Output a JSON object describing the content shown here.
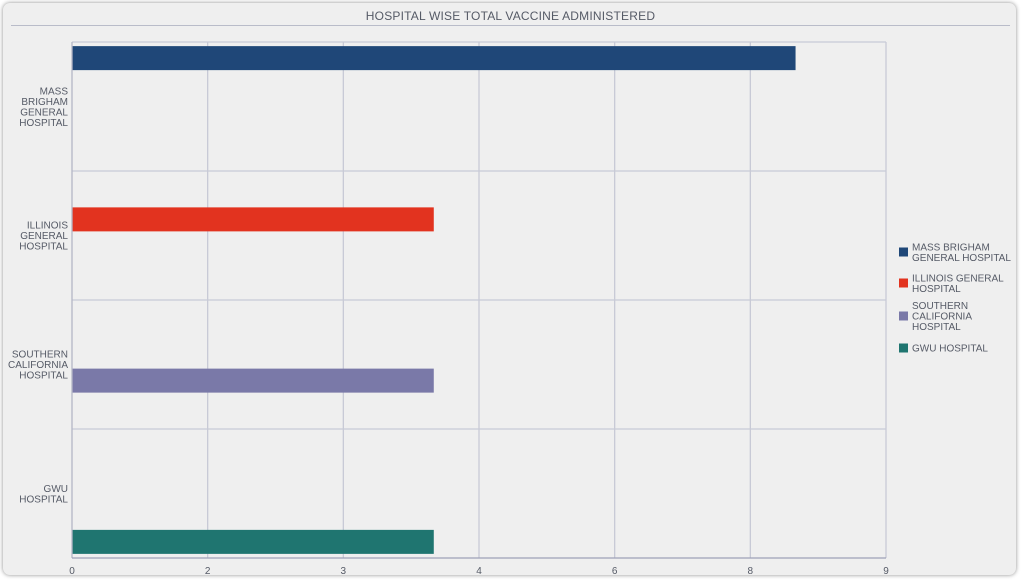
{
  "chart_data": {
    "type": "bar",
    "orientation": "horizontal",
    "title": "HOSPITAL WISE TOTAL VACCINE ADMINISTERED",
    "xlabel": "",
    "ylabel": "",
    "xlim": [
      0,
      9
    ],
    "x_ticks": [
      {
        "value": 0,
        "label": "0"
      },
      {
        "value": 1.5,
        "label": "2"
      },
      {
        "value": 3,
        "label": "3"
      },
      {
        "value": 4.5,
        "label": "4"
      },
      {
        "value": 6,
        "label": "6"
      },
      {
        "value": 7.5,
        "label": "8"
      },
      {
        "value": 9,
        "label": "9"
      }
    ],
    "grid": true,
    "legend_position": "right",
    "categories": [
      {
        "lines": [
          "MASS",
          "BRIGHAM",
          "GENERAL",
          "HOSPITAL"
        ]
      },
      {
        "lines": [
          "ILLINOIS",
          "GENERAL",
          "HOSPITAL"
        ]
      },
      {
        "lines": [
          "SOUTHERN",
          "CALIFORNIA",
          "HOSPITAL"
        ]
      },
      {
        "lines": [
          "GWU",
          "HOSPITAL"
        ]
      }
    ],
    "series": [
      {
        "name_lines": [
          "MASS BRIGHAM",
          "GENERAL HOSPITAL"
        ],
        "color": "#1f4778",
        "category_index": 0,
        "value": 8,
        "slot": 0
      },
      {
        "name_lines": [
          "ILLINOIS GENERAL",
          "HOSPITAL"
        ],
        "color": "#e2331f",
        "category_index": 1,
        "value": 4,
        "slot": 1
      },
      {
        "name_lines": [
          "SOUTHERN",
          "CALIFORNIA",
          "HOSPITAL"
        ],
        "color": "#7a79a8",
        "category_index": 2,
        "value": 4,
        "slot": 2
      },
      {
        "name_lines": [
          "GWU HOSPITAL"
        ],
        "color": "#1f7570",
        "category_index": 3,
        "value": 4,
        "slot": 3
      }
    ]
  }
}
